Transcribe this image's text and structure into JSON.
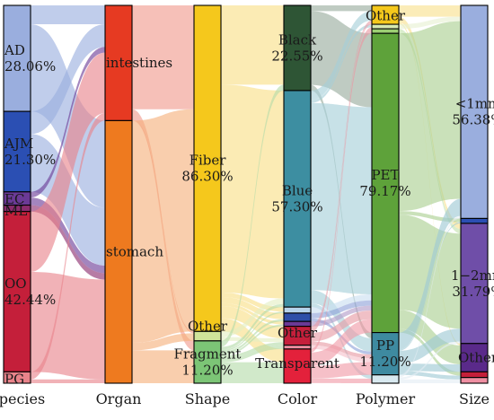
{
  "axes": [
    "Species",
    "Organ",
    "Shape",
    "Color",
    "Polymer",
    "Size"
  ],
  "columns": [
    {
      "key": "species",
      "nodes": [
        {
          "id": "AD",
          "label": "AD",
          "value": "28.06%",
          "color": "#9aaede",
          "share": 28.06
        },
        {
          "id": "AJM",
          "label": "AJM",
          "value": "21.30%",
          "color": "#2b4fb3",
          "share": 21.3
        },
        {
          "id": "EC",
          "label": "EC",
          "value": "",
          "color": "#6b3a96",
          "share": 3.5
        },
        {
          "id": "ML",
          "label": "ML",
          "value": "",
          "color": "#8b2c6e",
          "share": 1.7
        },
        {
          "id": "OO",
          "label": "OO",
          "value": "42.44%",
          "color": "#c41f3a",
          "share": 42.44
        },
        {
          "id": "PG",
          "label": "PG",
          "value": "",
          "color": "#e8838a",
          "share": 3.0
        }
      ]
    },
    {
      "key": "organ",
      "nodes": [
        {
          "id": "intestines",
          "label": "intestines",
          "value": "",
          "color": "#e63a22",
          "share": 30.5
        },
        {
          "id": "stomach",
          "label": "stomach",
          "value": "",
          "color": "#ee7a1f",
          "share": 69.5
        }
      ]
    },
    {
      "key": "shape",
      "nodes": [
        {
          "id": "Fiber",
          "label": "Fiber",
          "value": "86.30%",
          "color": "#f5c81c",
          "share": 86.3
        },
        {
          "id": "ShapeOther",
          "label": "Other",
          "value": "",
          "color": "#cfe39a",
          "share": 2.5
        },
        {
          "id": "Fragment",
          "label": "Fragment",
          "value": "11.20%",
          "color": "#7cc576",
          "share": 11.2
        }
      ]
    },
    {
      "key": "color",
      "nodes": [
        {
          "id": "Black",
          "label": "Black",
          "value": "22.55%",
          "color": "#2e5535",
          "share": 22.55
        },
        {
          "id": "Blue",
          "label": "Blue",
          "value": "57.30%",
          "color": "#3d8ea1",
          "share": 57.3
        },
        {
          "id": "ColLight",
          "label": "",
          "value": "",
          "color": "#b7d3ea",
          "share": 1.6
        },
        {
          "id": "ColNavy",
          "label": "",
          "value": "",
          "color": "#2f4fa8",
          "share": 2.2
        },
        {
          "id": "ColPurple",
          "label": "",
          "value": "",
          "color": "#6b3a96",
          "share": 1.3
        },
        {
          "id": "ColorOther",
          "label": "Other",
          "value": "",
          "color": "#c51f3b",
          "share": 5.0
        },
        {
          "id": "ColPink",
          "label": "",
          "value": "",
          "color": "#ef8fa2",
          "share": 1.0
        },
        {
          "id": "Transparent",
          "label": "Transparent",
          "value": "",
          "color": "#e3213b",
          "share": 9.05
        }
      ]
    },
    {
      "key": "polymer",
      "nodes": [
        {
          "id": "PolyOther",
          "label": "Other",
          "value": "",
          "color": "#f5c81c",
          "share": 5.0
        },
        {
          "id": "PolyLight",
          "label": "",
          "value": "",
          "color": "#d6e9b0",
          "share": 1.2
        },
        {
          "id": "PolyTeal",
          "label": "",
          "value": "",
          "color": "#9ccf73",
          "share": 1.2
        },
        {
          "id": "PET",
          "label": "PET",
          "value": "79.17%",
          "color": "#5ea23a",
          "share": 79.17
        },
        {
          "id": "PP",
          "label": "PP",
          "value": "11.20%",
          "color": "#3e8aa0",
          "share": 11.2
        },
        {
          "id": "PolyPale",
          "label": "",
          "value": "",
          "color": "#d8e9f0",
          "share": 2.2
        }
      ]
    },
    {
      "key": "size",
      "nodes": [
        {
          "id": "lt1",
          "label": "<1mm",
          "value": "56.38%",
          "color": "#9aaede",
          "share": 56.38
        },
        {
          "id": "SizeBlue",
          "label": "",
          "value": "",
          "color": "#2b4fb3",
          "share": 1.3
        },
        {
          "id": "mm12",
          "label": "1−2mm",
          "value": "31.79%",
          "color": "#6f4ea8",
          "share": 31.79
        },
        {
          "id": "SizeOther",
          "label": "Other",
          "value": "",
          "color": "#5a2a8a",
          "share": 7.5
        },
        {
          "id": "SizeRed",
          "label": "",
          "value": "",
          "color": "#c41f3a",
          "share": 1.5
        },
        {
          "id": "SizePink",
          "label": "",
          "value": "",
          "color": "#ef8fa2",
          "share": 1.5
        }
      ]
    }
  ],
  "links": [
    {
      "from": "AD",
      "to": "intestines",
      "value": 5,
      "color": "#9aaede"
    },
    {
      "from": "AD",
      "to": "stomach",
      "value": 23.06,
      "color": "#9aaede"
    },
    {
      "from": "AJM",
      "to": "intestines",
      "value": 6,
      "color": "#9aaede"
    },
    {
      "from": "AJM",
      "to": "stomach",
      "value": 15.3,
      "color": "#9aaede"
    },
    {
      "from": "EC",
      "to": "intestines",
      "value": 1.5,
      "color": "#6b3a96"
    },
    {
      "from": "EC",
      "to": "stomach",
      "value": 2.0,
      "color": "#6b3a96"
    },
    {
      "from": "ML",
      "to": "stomach",
      "value": 1.7,
      "color": "#8b2c6e"
    },
    {
      "from": "OO",
      "to": "intestines",
      "value": 16,
      "color": "#e8838a"
    },
    {
      "from": "OO",
      "to": "stomach",
      "value": 26.44,
      "color": "#e8838a"
    },
    {
      "from": "PG",
      "to": "intestines",
      "value": 2.0,
      "color": "#e8838a"
    },
    {
      "from": "PG",
      "to": "stomach",
      "value": 1.0,
      "color": "#e8838a"
    },
    {
      "from": "intestines",
      "to": "Fiber",
      "value": 27.5,
      "color": "#f09a8c"
    },
    {
      "from": "intestines",
      "to": "Fragment",
      "value": 2.5,
      "color": "#f09a8c"
    },
    {
      "from": "intestines",
      "to": "ShapeOther",
      "value": 0.5,
      "color": "#f09a8c"
    },
    {
      "from": "stomach",
      "to": "Fiber",
      "value": 58.8,
      "color": "#f5b07a"
    },
    {
      "from": "stomach",
      "to": "ShapeOther",
      "value": 2.0,
      "color": "#f5b07a"
    },
    {
      "from": "stomach",
      "to": "Fragment",
      "value": 8.7,
      "color": "#f5b07a"
    },
    {
      "from": "Fiber",
      "to": "Black",
      "value": 21.0,
      "color": "#f8de86"
    },
    {
      "from": "Fiber",
      "to": "Blue",
      "value": 55.0,
      "color": "#f8de86"
    },
    {
      "from": "Fiber",
      "to": "ColLight",
      "value": 1.2,
      "color": "#f8de86"
    },
    {
      "from": "Fiber",
      "to": "ColNavy",
      "value": 1.6,
      "color": "#f8de86"
    },
    {
      "from": "Fiber",
      "to": "ColPurple",
      "value": 0.8,
      "color": "#f8de86"
    },
    {
      "from": "Fiber",
      "to": "ColorOther",
      "value": 3.2,
      "color": "#f8de86"
    },
    {
      "from": "Fiber",
      "to": "Transparent",
      "value": 3.5,
      "color": "#f8de86"
    },
    {
      "from": "ShapeOther",
      "to": "Blue",
      "value": 1.5,
      "color": "#e4efc4"
    },
    {
      "from": "ShapeOther",
      "to": "ColorOther",
      "value": 1.0,
      "color": "#e4efc4"
    },
    {
      "from": "Fragment",
      "to": "Black",
      "value": 1.55,
      "color": "#b4dcaa"
    },
    {
      "from": "Fragment",
      "to": "Blue",
      "value": 0.8,
      "color": "#b4dcaa"
    },
    {
      "from": "Fragment",
      "to": "ColLight",
      "value": 0.4,
      "color": "#b4dcaa"
    },
    {
      "from": "Fragment",
      "to": "ColNavy",
      "value": 0.6,
      "color": "#b4dcaa"
    },
    {
      "from": "Fragment",
      "to": "ColPurple",
      "value": 0.5,
      "color": "#b4dcaa"
    },
    {
      "from": "Fragment",
      "to": "ColorOther",
      "value": 0.8,
      "color": "#b4dcaa"
    },
    {
      "from": "Fragment",
      "to": "ColPink",
      "value": 1.0,
      "color": "#b4dcaa"
    },
    {
      "from": "Fragment",
      "to": "Transparent",
      "value": 5.55,
      "color": "#b4dcaa"
    },
    {
      "from": "Black",
      "to": "PolyOther",
      "value": 1.5,
      "color": "#97ab9c"
    },
    {
      "from": "Black",
      "to": "PET",
      "value": 19.55,
      "color": "#97ab9c"
    },
    {
      "from": "Black",
      "to": "PP",
      "value": 1.5,
      "color": "#97ab9c"
    },
    {
      "from": "Blue",
      "to": "PolyOther",
      "value": 2.5,
      "color": "#a5cfd8"
    },
    {
      "from": "Blue",
      "to": "PolyLight",
      "value": 0.8,
      "color": "#a5cfd8"
    },
    {
      "from": "Blue",
      "to": "PET",
      "value": 49.5,
      "color": "#a5cfd8"
    },
    {
      "from": "Blue",
      "to": "PP",
      "value": 3.5,
      "color": "#a5cfd8"
    },
    {
      "from": "Blue",
      "to": "PolyPale",
      "value": 1.0,
      "color": "#a5cfd8"
    },
    {
      "from": "ColLight",
      "to": "PET",
      "value": 1.6,
      "color": "#c9dff0"
    },
    {
      "from": "ColNavy",
      "to": "PET",
      "value": 1.4,
      "color": "#8ea2d8"
    },
    {
      "from": "ColNavy",
      "to": "PP",
      "value": 0.8,
      "color": "#8ea2d8"
    },
    {
      "from": "ColPurple",
      "to": "PET",
      "value": 1.3,
      "color": "#b29bc8"
    },
    {
      "from": "ColorOther",
      "to": "PolyOther",
      "value": 0.5,
      "color": "#e69aa3"
    },
    {
      "from": "ColorOther",
      "to": "PolyTeal",
      "value": 1.2,
      "color": "#e69aa3"
    },
    {
      "from": "ColorOther",
      "to": "PET",
      "value": 2.3,
      "color": "#e69aa3"
    },
    {
      "from": "ColorOther",
      "to": "PP",
      "value": 1.0,
      "color": "#e69aa3"
    },
    {
      "from": "ColPink",
      "to": "PP",
      "value": 1.0,
      "color": "#f6c2cc"
    },
    {
      "from": "Transparent",
      "to": "PolyOther",
      "value": 0.5,
      "color": "#f19aa6"
    },
    {
      "from": "Transparent",
      "to": "PolyLight",
      "value": 0.4,
      "color": "#f19aa6"
    },
    {
      "from": "Transparent",
      "to": "PET",
      "value": 3.52,
      "color": "#f19aa6"
    },
    {
      "from": "Transparent",
      "to": "PP",
      "value": 3.4,
      "color": "#f19aa6"
    },
    {
      "from": "Transparent",
      "to": "PolyPale",
      "value": 1.2,
      "color": "#f19aa6"
    },
    {
      "from": "PolyOther",
      "to": "lt1",
      "value": 3.0,
      "color": "#f8e08c"
    },
    {
      "from": "PolyOther",
      "to": "mm12",
      "value": 1.5,
      "color": "#f8e08c"
    },
    {
      "from": "PolyOther",
      "to": "SizeOther",
      "value": 0.5,
      "color": "#f8e08c"
    },
    {
      "from": "PolyLight",
      "to": "lt1",
      "value": 1.2,
      "color": "#e6f1d2"
    },
    {
      "from": "PolyTeal",
      "to": "mm12",
      "value": 1.2,
      "color": "#c4e2ad"
    },
    {
      "from": "PET",
      "to": "lt1",
      "value": 47.0,
      "color": "#a9cf90"
    },
    {
      "from": "PET",
      "to": "SizeBlue",
      "value": 1.0,
      "color": "#a9cf90"
    },
    {
      "from": "PET",
      "to": "mm12",
      "value": 25.17,
      "color": "#a9cf90"
    },
    {
      "from": "PET",
      "to": "SizeOther",
      "value": 5.0,
      "color": "#a9cf90"
    },
    {
      "from": "PET",
      "to": "SizeRed",
      "value": 1.0,
      "color": "#a9cf90"
    },
    {
      "from": "PP",
      "to": "lt1",
      "value": 4.5,
      "color": "#9cc8d3"
    },
    {
      "from": "PP",
      "to": "SizeBlue",
      "value": 0.3,
      "color": "#9cc8d3"
    },
    {
      "from": "PP",
      "to": "mm12",
      "value": 3.4,
      "color": "#9cc8d3"
    },
    {
      "from": "PP",
      "to": "SizeOther",
      "value": 2.0,
      "color": "#9cc8d3"
    },
    {
      "from": "PP",
      "to": "SizeRed",
      "value": 0.5,
      "color": "#9cc8d3"
    },
    {
      "from": "PP",
      "to": "SizePink",
      "value": 0.5,
      "color": "#9cc8d3"
    },
    {
      "from": "PolyPale",
      "to": "lt1",
      "value": 0.68,
      "color": "#e3eef3"
    },
    {
      "from": "PolyPale",
      "to": "mm12",
      "value": 0.52,
      "color": "#e3eef3"
    },
    {
      "from": "PolyPale",
      "to": "SizePink",
      "value": 1.0,
      "color": "#e3eef3"
    }
  ]
}
